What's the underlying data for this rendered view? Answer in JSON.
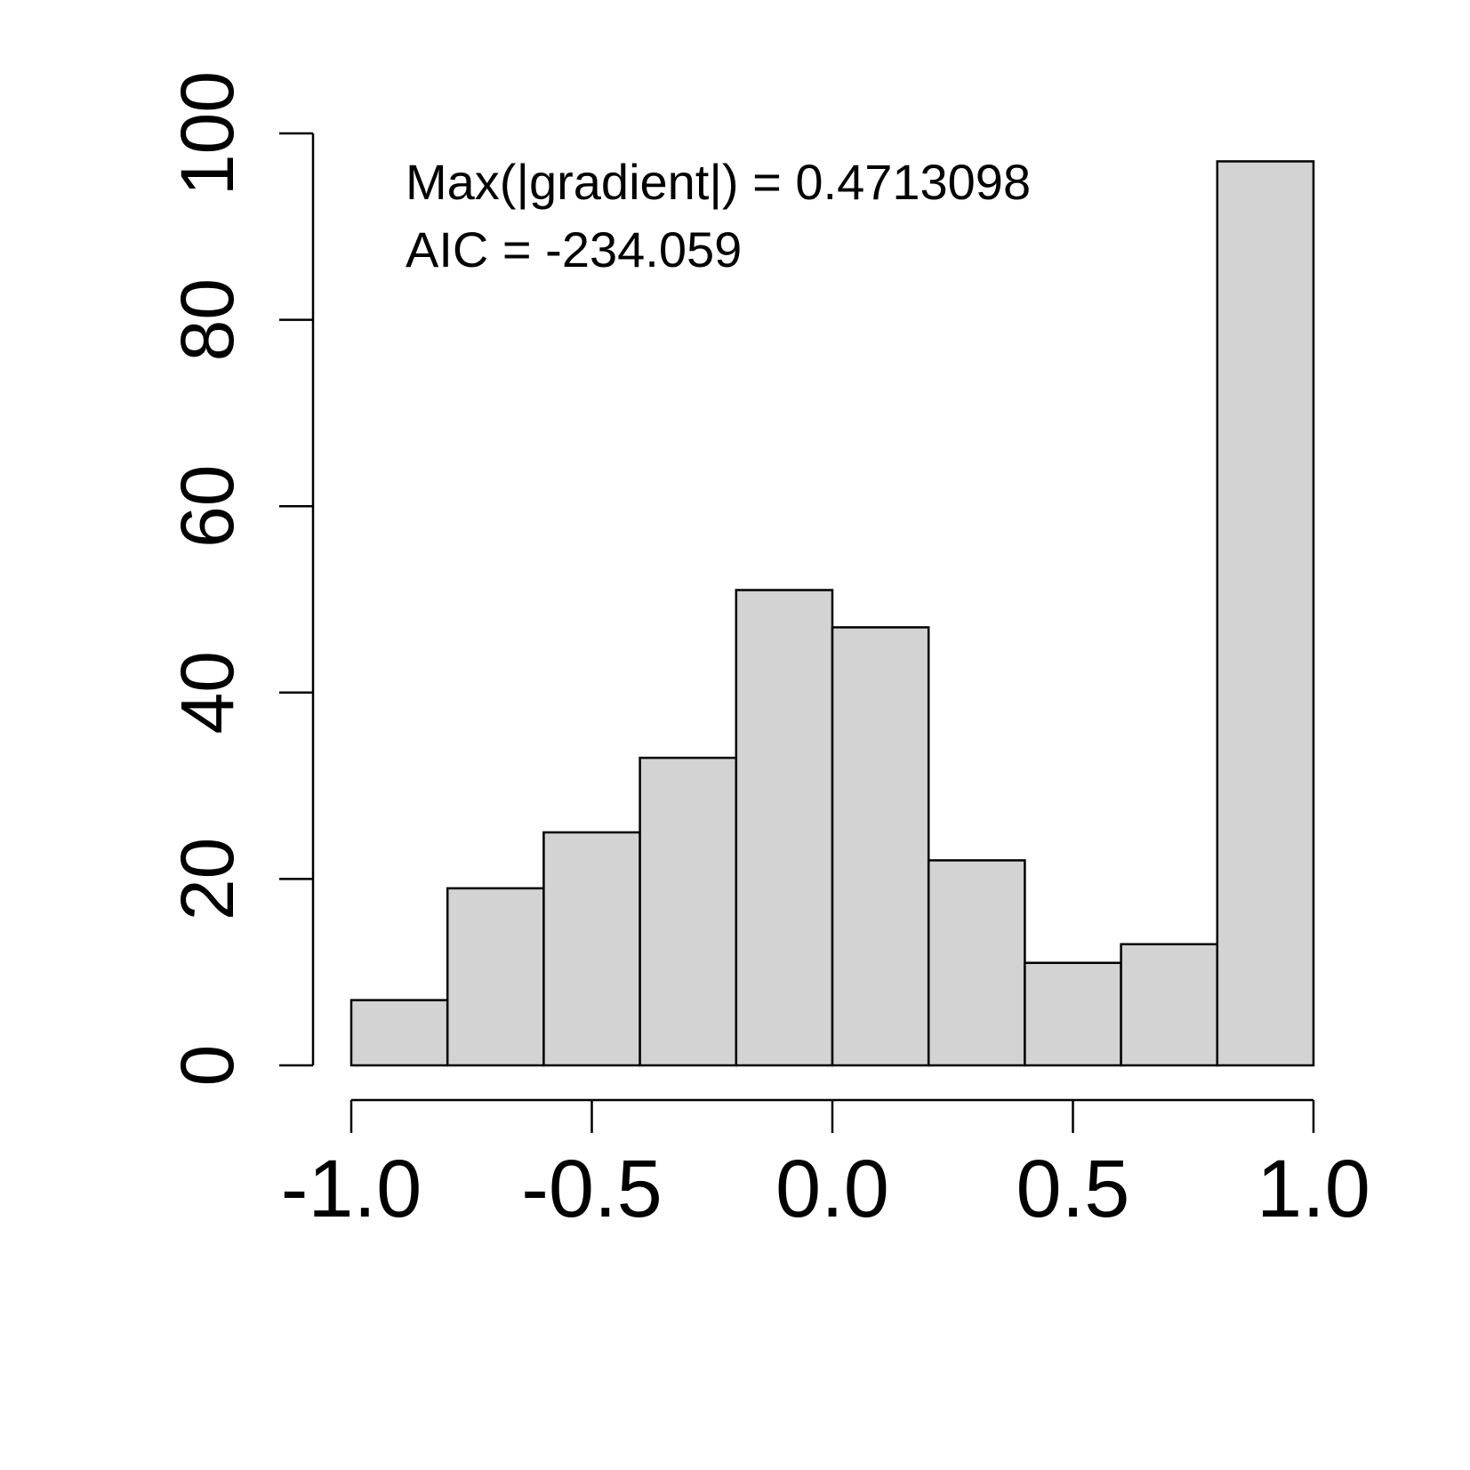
{
  "chart_data": {
    "type": "bar",
    "subtype": "histogram",
    "bin_edges": [
      -1.0,
      -0.8,
      -0.6,
      -0.4,
      -0.2,
      0.0,
      0.2,
      0.4,
      0.6,
      0.8,
      1.0
    ],
    "values": [
      7,
      19,
      25,
      33,
      51,
      47,
      22,
      11,
      13,
      97
    ],
    "xlim": [
      -1.0,
      1.0
    ],
    "ylim": [
      0,
      100
    ],
    "x_ticks": [
      -1.0,
      -0.5,
      0.0,
      0.5,
      1.0
    ],
    "x_tick_labels": [
      "-1.0",
      "-0.5",
      "0.0",
      "0.5",
      "1.0"
    ],
    "y_ticks": [
      0,
      20,
      40,
      60,
      80,
      100
    ],
    "y_tick_labels": [
      "0",
      "20",
      "40",
      "60",
      "80",
      "100"
    ],
    "annotations": [
      "Max(|gradient|) = 0.4713098",
      "AIC = -234.059"
    ],
    "title": "",
    "xlabel": "",
    "ylabel": "",
    "grid": false,
    "bar_color": "#d3d3d3",
    "edge_color": "#000000"
  }
}
